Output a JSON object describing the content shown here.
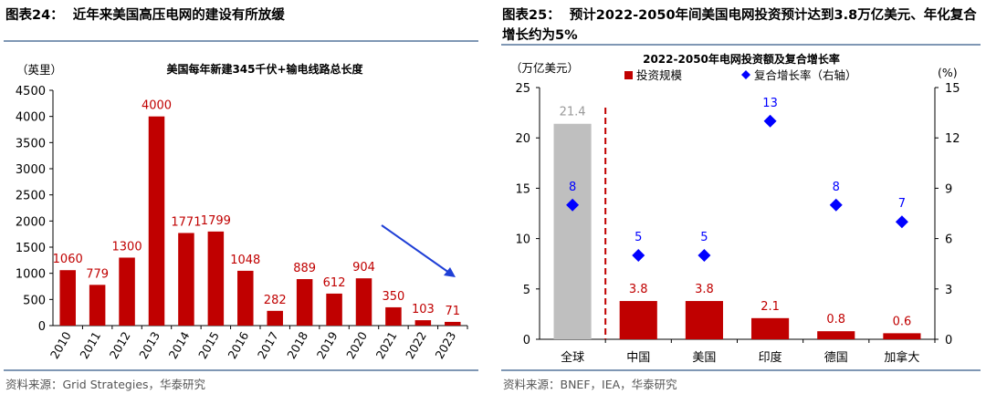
{
  "left": {
    "figure_label": "图表24：",
    "figure_title": "近年来美国高压电网的建设有所放缓",
    "source": "资料来源：Grid Strategies，华泰研究"
  },
  "right": {
    "figure_label": "图表25：",
    "figure_title": "预计2022-2050年间美国电网投资预计达到3.8万亿美元、年化复合增长约为5%",
    "source": "资料来源：BNEF，IEA，华泰研究"
  },
  "colors": {
    "bar": "#c00000",
    "bar_global": "#bfbfbf",
    "diamond": "#0000ff",
    "arrow": "#1f3fd6",
    "rule": "#7f97b4",
    "divider": "#c00000"
  },
  "chart_data": [
    {
      "type": "bar",
      "title": "美国每年新建345千伏+输电线路总长度",
      "ylabel": "（英里）",
      "categories": [
        "2010",
        "2011",
        "2012",
        "2013",
        "2014",
        "2015",
        "2016",
        "2017",
        "2018",
        "2019",
        "2020",
        "2021",
        "2022",
        "2023"
      ],
      "values": [
        1060,
        779,
        1300,
        4000,
        1771,
        1799,
        1048,
        282,
        889,
        612,
        904,
        350,
        103,
        71
      ],
      "ylim": [
        0,
        4500
      ],
      "yticks": [
        0,
        500,
        1000,
        1500,
        2000,
        2500,
        3000,
        3500,
        4000,
        4500
      ],
      "grid": false,
      "annotation": "downward trend arrow"
    },
    {
      "type": "bar",
      "title": "2022-2050年电网投资额及复合增长率",
      "ylabel": "（万亿美元）",
      "y2label": "(%)",
      "categories": [
        "全球",
        "中国",
        "美国",
        "印度",
        "德国",
        "加拿大"
      ],
      "series": [
        {
          "name": "投资规模",
          "type": "bar",
          "axis": "left",
          "values": [
            21.4,
            3.8,
            3.8,
            2.1,
            0.8,
            0.6
          ]
        },
        {
          "name": "复合增长率（右轴）",
          "type": "scatter",
          "marker": "diamond",
          "axis": "right",
          "values": [
            8,
            5,
            5,
            13,
            8,
            7
          ]
        }
      ],
      "ylim": [
        0,
        25
      ],
      "yticks": [
        0,
        5,
        10,
        15,
        20,
        25
      ],
      "y2lim": [
        0,
        15
      ],
      "y2ticks": [
        0,
        3,
        6,
        9,
        12,
        15
      ],
      "legend_position": "top",
      "grid": false
    }
  ]
}
